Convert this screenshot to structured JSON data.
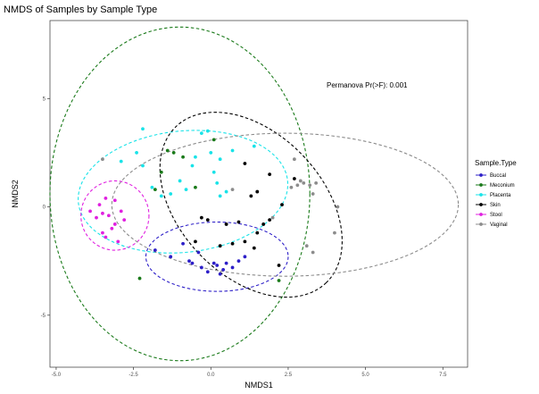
{
  "chart_data": {
    "type": "scatter",
    "title": "NMDS of Samples by Sample Type",
    "xlabel": "NMDS1",
    "ylabel": "NMDS2",
    "xlim": [
      -5.2,
      8.3
    ],
    "ylim": [
      -7.4,
      8.6
    ],
    "xticks": [
      -5.0,
      -2.5,
      0.0,
      2.5,
      5.0,
      7.5
    ],
    "xtick_labels": [
      "-5.0",
      "-2.5",
      "0.0",
      "2.5",
      "5.0",
      "7.5"
    ],
    "yticks": [
      -5,
      0,
      5
    ],
    "ytick_labels": [
      "-5",
      "0",
      "5"
    ],
    "grid": false,
    "annotation": {
      "text": "Permanova Pr(>F): 0.001",
      "x": 2.0,
      "y": 5.8
    },
    "legend": {
      "title": "Sample.Type",
      "placement": "right",
      "entries": [
        "Buccal",
        "Meconium",
        "Placenta",
        "Skin",
        "Stool",
        "Vaginal"
      ]
    },
    "series": [
      {
        "name": "Buccal",
        "color": "#2d1fc8",
        "ellipse": {
          "cx": 0.2,
          "cy": -2.3,
          "rx": 2.3,
          "ry": 1.6,
          "angle": 0
        },
        "points": [
          [
            -1.8,
            -2.0
          ],
          [
            -1.3,
            -2.3
          ],
          [
            -0.7,
            -2.5
          ],
          [
            -0.6,
            -2.6
          ],
          [
            -0.3,
            -2.8
          ],
          [
            -0.1,
            -3.0
          ],
          [
            0.1,
            -2.6
          ],
          [
            0.2,
            -2.7
          ],
          [
            0.3,
            -3.1
          ],
          [
            0.4,
            -2.9
          ],
          [
            0.5,
            -2.6
          ],
          [
            0.7,
            -2.8
          ],
          [
            0.9,
            -2.5
          ],
          [
            1.1,
            -2.3
          ],
          [
            -0.9,
            -1.7
          ],
          [
            -0.4,
            -2.1
          ]
        ]
      },
      {
        "name": "Meconium",
        "color": "#1a7a1a",
        "ellipse": {
          "cx": -1.0,
          "cy": 0.6,
          "rx": 4.2,
          "ry": 7.7,
          "angle": 0
        },
        "points": [
          [
            -1.4,
            2.6
          ],
          [
            -1.2,
            2.5
          ],
          [
            -0.9,
            2.3
          ],
          [
            -1.6,
            1.6
          ],
          [
            -0.5,
            0.9
          ],
          [
            -1.8,
            0.8
          ],
          [
            -2.3,
            -3.3
          ],
          [
            0.1,
            3.1
          ],
          [
            2.2,
            -3.4
          ]
        ]
      },
      {
        "name": "Placenta",
        "color": "#19e3e8",
        "ellipse": {
          "cx": -0.9,
          "cy": 0.7,
          "rx": 3.4,
          "ry": 2.8,
          "angle": -6
        },
        "points": [
          [
            -2.4,
            2.5
          ],
          [
            -2.2,
            3.6
          ],
          [
            -1.9,
            0.9
          ],
          [
            -1.6,
            0.5
          ],
          [
            -1.3,
            0.6
          ],
          [
            -1.0,
            1.2
          ],
          [
            -0.8,
            0.8
          ],
          [
            -0.6,
            1.9
          ],
          [
            -0.5,
            2.3
          ],
          [
            -0.3,
            3.4
          ],
          [
            -0.1,
            3.5
          ],
          [
            0.0,
            2.5
          ],
          [
            0.1,
            1.6
          ],
          [
            0.2,
            1.1
          ],
          [
            0.3,
            0.5
          ],
          [
            0.5,
            0.7
          ],
          [
            -2.9,
            2.1
          ],
          [
            -2.2,
            1.9
          ],
          [
            0.3,
            2.2
          ],
          [
            0.7,
            2.6
          ],
          [
            1.4,
            2.8
          ]
        ]
      },
      {
        "name": "Skin",
        "color": "#000000",
        "ellipse": {
          "cx": 1.3,
          "cy": 0.1,
          "rx": 3.5,
          "ry": 3.3,
          "angle": 46
        },
        "points": [
          [
            -0.5,
            -1.6
          ],
          [
            0.3,
            -1.8
          ],
          [
            0.7,
            -1.7
          ],
          [
            1.1,
            -1.6
          ],
          [
            1.4,
            -1.9
          ],
          [
            0.9,
            -0.7
          ],
          [
            1.7,
            -0.8
          ],
          [
            1.9,
            -0.6
          ],
          [
            2.3,
            0.1
          ],
          [
            1.5,
            0.7
          ],
          [
            1.9,
            1.5
          ],
          [
            2.7,
            1.3
          ],
          [
            1.3,
            0.5
          ],
          [
            -0.3,
            -0.5
          ],
          [
            1.5,
            -1.2
          ],
          [
            2.2,
            -2.7
          ],
          [
            -0.1,
            -0.6
          ],
          [
            0.5,
            -0.8
          ],
          [
            1.1,
            2.0
          ]
        ]
      },
      {
        "name": "Stool",
        "color": "#e020e0",
        "ellipse": {
          "cx": -3.1,
          "cy": -0.4,
          "rx": 1.1,
          "ry": 1.6,
          "angle": 0
        },
        "points": [
          [
            -3.9,
            -0.2
          ],
          [
            -3.7,
            -0.5
          ],
          [
            -3.5,
            -0.3
          ],
          [
            -3.3,
            -0.4
          ],
          [
            -3.1,
            -0.8
          ],
          [
            -2.9,
            -0.2
          ],
          [
            -3.6,
            0.1
          ],
          [
            -3.4,
            0.4
          ],
          [
            -3.1,
            0.3
          ],
          [
            -2.8,
            -0.6
          ],
          [
            -3.2,
            -1.0
          ],
          [
            -3.5,
            -1.2
          ],
          [
            -3.0,
            -1.6
          ],
          [
            -3.4,
            -1.4
          ]
        ]
      },
      {
        "name": "Vaginal",
        "color": "#8c8c8c",
        "ellipse": {
          "cx": 2.4,
          "cy": 0.1,
          "rx": 5.6,
          "ry": 3.3,
          "angle": 0
        },
        "points": [
          [
            -3.5,
            2.2
          ],
          [
            0.7,
            0.8
          ],
          [
            2.0,
            -0.5
          ],
          [
            2.8,
            1.0
          ],
          [
            2.9,
            1.2
          ],
          [
            3.0,
            1.1
          ],
          [
            3.2,
            1.0
          ],
          [
            3.4,
            1.1
          ],
          [
            3.3,
            0.6
          ],
          [
            3.1,
            -1.8
          ],
          [
            3.3,
            -2.1
          ],
          [
            4.1,
            0.0
          ],
          [
            4.0,
            -1.2
          ],
          [
            2.6,
            0.9
          ],
          [
            2.7,
            2.2
          ]
        ]
      }
    ]
  }
}
